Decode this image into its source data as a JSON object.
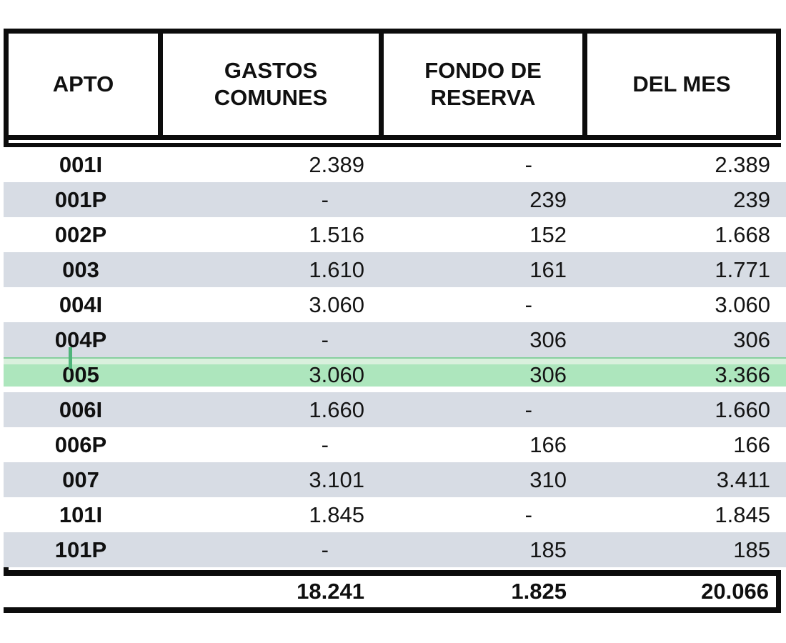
{
  "table": {
    "columns": {
      "apto": "APTO",
      "gastos": "GASTOS COMUNES",
      "fondo": "FONDO DE RESERVA",
      "mes": "DEL MES"
    },
    "rows": [
      {
        "apto": "001I",
        "gastos": "2.389",
        "fondo": "-",
        "mes": "2.389"
      },
      {
        "apto": "001P",
        "gastos": "-",
        "fondo": "239",
        "mes": "239"
      },
      {
        "apto": "002P",
        "gastos": "1.516",
        "fondo": "152",
        "mes": "1.668"
      },
      {
        "apto": "003",
        "gastos": "1.610",
        "fondo": "161",
        "mes": "1.771"
      },
      {
        "apto": "004I",
        "gastos": "3.060",
        "fondo": "-",
        "mes": "3.060"
      },
      {
        "apto": "004P",
        "gastos": "-",
        "fondo": "306",
        "mes": "306"
      },
      {
        "apto": "005",
        "gastos": "3.060",
        "fondo": "306",
        "mes": "3.366"
      },
      {
        "apto": "006I",
        "gastos": "1.660",
        "fondo": "-",
        "mes": "1.660"
      },
      {
        "apto": "006P",
        "gastos": "-",
        "fondo": "166",
        "mes": "166"
      },
      {
        "apto": "007",
        "gastos": "3.101",
        "fondo": "310",
        "mes": "3.411"
      },
      {
        "apto": "101I",
        "gastos": "1.845",
        "fondo": "-",
        "mes": "1.845"
      },
      {
        "apto": "101P",
        "gastos": "-",
        "fondo": "185",
        "mes": "185"
      }
    ],
    "totals": {
      "gastos": "18.241",
      "fondo": "1.825",
      "mes": "20.066"
    },
    "highlighted_row": "005"
  },
  "colors": {
    "border": "#0c0c0c",
    "zebra_gray": "#d7dce4",
    "highlight_green": "#ade6bd",
    "highlight_green_light": "#d9f0dd",
    "highlight_green_dark": "#88d09f",
    "selection_tick_green": "#4fb47a"
  }
}
